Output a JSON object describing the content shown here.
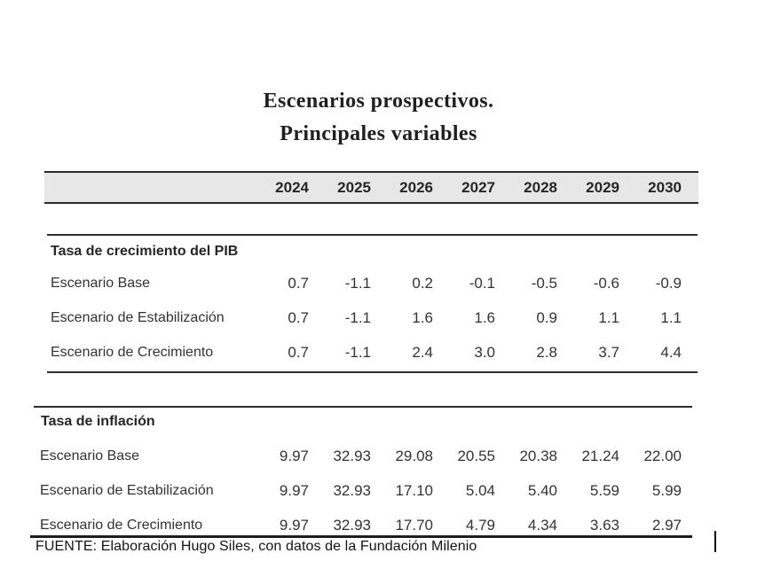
{
  "title": {
    "line1": "Escenarios prospectivos.",
    "line2": "Principales variables"
  },
  "years": [
    "2024",
    "2025",
    "2026",
    "2027",
    "2028",
    "2029",
    "2030"
  ],
  "sections": [
    {
      "header": "Tasa de crecimiento del PIB",
      "rows": [
        {
          "label": "Escenario Base",
          "values": [
            "0.7",
            "-1.1",
            "0.2",
            "-0.1",
            "-0.5",
            "-0.6",
            "-0.9"
          ]
        },
        {
          "label": "Escenario de Estabilización",
          "values": [
            "0.7",
            "-1.1",
            "1.6",
            "1.6",
            "0.9",
            "1.1",
            "1.1"
          ]
        },
        {
          "label": "Escenario de Crecimiento",
          "values": [
            "0.7",
            "-1.1",
            "2.4",
            "3.0",
            "2.8",
            "3.7",
            "4.4"
          ]
        }
      ]
    },
    {
      "header": "Tasa de inflación",
      "rows": [
        {
          "label": "Escenario Base",
          "values": [
            "9.97",
            "32.93",
            "29.08",
            "20.55",
            "20.38",
            "21.24",
            "22.00"
          ]
        },
        {
          "label": "Escenario de Estabilización",
          "values": [
            "9.97",
            "32.93",
            "17.10",
            "5.04",
            "5.40",
            "5.59",
            "5.99"
          ]
        },
        {
          "label": "Escenario de Crecimiento",
          "values": [
            "9.97",
            "32.93",
            "17.70",
            "4.79",
            "4.34",
            "3.63",
            "2.97"
          ]
        }
      ]
    }
  ],
  "footer": "FUENTE: Elaboración Hugo Siles, con datos de la Fundación Milenio",
  "colors": {
    "band_background": "#e7e7e7",
    "rule_line": "#2e2e2e",
    "text": "#333333"
  }
}
